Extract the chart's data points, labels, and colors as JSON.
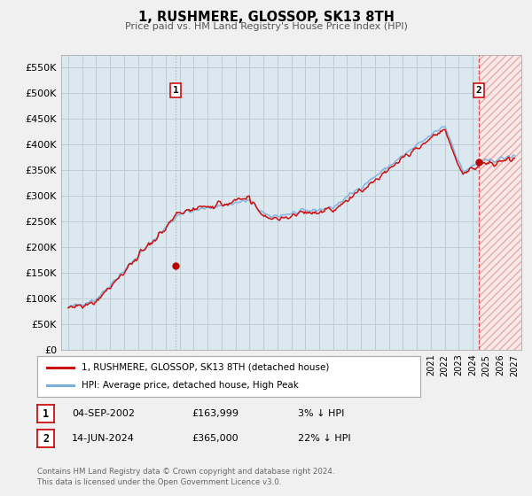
{
  "title": "1, RUSHMERE, GLOSSOP, SK13 8TH",
  "subtitle": "Price paid vs. HM Land Registry's House Price Index (HPI)",
  "legend_line1": "1, RUSHMERE, GLOSSOP, SK13 8TH (detached house)",
  "legend_line2": "HPI: Average price, detached house, High Peak",
  "annotation1_label": "1",
  "annotation1_date": "04-SEP-2002",
  "annotation1_price": "£163,999",
  "annotation1_hpi": "3% ↓ HPI",
  "annotation1_year": 2002.71,
  "annotation1_value": 163999,
  "annotation2_label": "2",
  "annotation2_date": "14-JUN-2024",
  "annotation2_price": "£365,000",
  "annotation2_hpi": "22% ↓ HPI",
  "annotation2_year": 2024.45,
  "annotation2_value": 365000,
  "footer_line1": "Contains HM Land Registry data © Crown copyright and database right 2024.",
  "footer_line2": "This data is licensed under the Open Government Licence v3.0.",
  "hpi_color": "#7aafdb",
  "price_color": "#cc1111",
  "marker_color": "#bb0000",
  "background_color": "#f0f0f0",
  "plot_background": "#dce8f0",
  "grid_color": "#c0ccd4",
  "hatch_color": "#ffcccc",
  "ylim": [
    0,
    575000
  ],
  "xlim_start": 1994.5,
  "xlim_end": 2027.5,
  "yticks": [
    0,
    50000,
    100000,
    150000,
    200000,
    250000,
    300000,
    350000,
    400000,
    450000,
    500000,
    550000
  ],
  "ytick_labels": [
    "£0",
    "£50K",
    "£100K",
    "£150K",
    "£200K",
    "£250K",
    "£300K",
    "£350K",
    "£400K",
    "£450K",
    "£500K",
    "£550K"
  ]
}
